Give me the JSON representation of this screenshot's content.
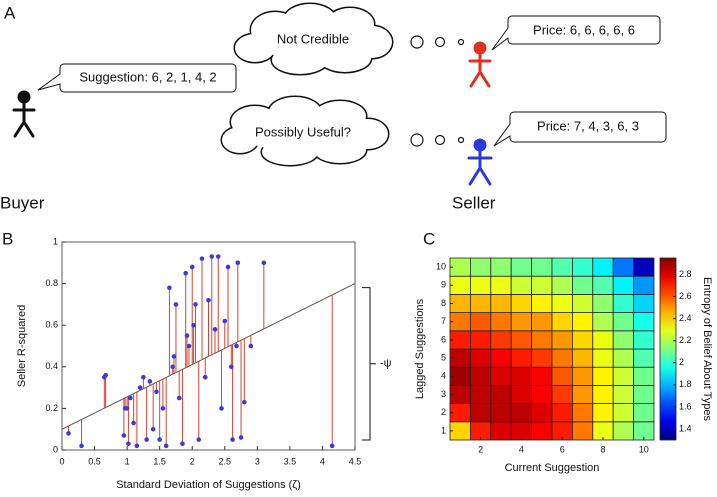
{
  "panel_a": {
    "label": "A",
    "thought_top": "Not Credible",
    "thought_bottom": "Possibly Useful?",
    "buyer_speech": "Suggestion: 6, 2, 1, 4, 2",
    "seller_red_speech": "Price: 6, 6, 6, 6, 6",
    "seller_blue_speech": "Price: 7, 4, 3, 6, 3",
    "buyer": "Buyer",
    "seller": "Seller"
  },
  "chart_data": [
    {
      "type": "scatter",
      "panel_label": "B",
      "xlabel": "Standard Deviation of Suggestions (ζ)",
      "ylabel": "Seller R-squared",
      "annotation": "-ψ",
      "color": "#3b3bdc",
      "stem_color": "#d9412f",
      "fit_color": "#555555",
      "x": [
        0.1,
        0.3,
        0.65,
        0.67,
        0.95,
        0.97,
        1.0,
        1.02,
        1.05,
        1.1,
        1.15,
        1.2,
        1.25,
        1.3,
        1.35,
        1.4,
        1.45,
        1.5,
        1.55,
        1.6,
        1.65,
        1.7,
        1.72,
        1.75,
        1.8,
        1.85,
        1.9,
        1.92,
        1.95,
        2.0,
        2.02,
        2.05,
        2.1,
        2.15,
        2.2,
        2.25,
        2.3,
        2.35,
        2.4,
        2.45,
        2.5,
        2.55,
        2.6,
        2.62,
        2.68,
        2.7,
        2.75,
        2.8,
        2.9,
        3.1,
        4.15
      ],
      "values": [
        0.08,
        0.02,
        0.35,
        0.36,
        0.07,
        0.2,
        0.2,
        0.03,
        0.25,
        0.13,
        0.02,
        0.3,
        0.35,
        0.05,
        0.33,
        0.1,
        0.28,
        0.05,
        0.2,
        0.02,
        0.78,
        0.4,
        0.45,
        0.7,
        0.25,
        0.03,
        0.85,
        0.55,
        0.5,
        0.88,
        0.6,
        0.7,
        0.05,
        0.92,
        0.35,
        0.72,
        0.93,
        0.58,
        0.93,
        0.2,
        0.62,
        0.88,
        0.4,
        0.05,
        0.5,
        0.9,
        0.06,
        0.23,
        0.5,
        0.9,
        0.02
      ],
      "fit": {
        "x": [
          0,
          4.5
        ],
        "y": [
          0.1,
          0.8
        ]
      },
      "xlim": [
        0,
        4.5
      ],
      "xticks": [
        0,
        0.5,
        1,
        1.5,
        2,
        2.5,
        3,
        3.5,
        4,
        4.5
      ],
      "ylim": [
        0,
        1
      ],
      "yticks": [
        0,
        0.2,
        0.4,
        0.6,
        0.8,
        1
      ]
    },
    {
      "type": "heatmap",
      "panel_label": "C",
      "xlabel": "Current Suggestion",
      "ylabel": "Lagged Suggestions",
      "colormap": "jet",
      "x": [
        1,
        2,
        3,
        4,
        5,
        6,
        7,
        8,
        9,
        10
      ],
      "y": [
        1,
        2,
        3,
        4,
        5,
        6,
        7,
        8,
        9,
        10
      ],
      "values": [
        [
          2.4,
          2.7,
          2.8,
          2.8,
          2.75,
          2.7,
          2.55,
          2.3,
          2.2,
          2.1
        ],
        [
          2.7,
          2.85,
          2.85,
          2.85,
          2.8,
          2.7,
          2.55,
          2.35,
          2.25,
          2.1
        ],
        [
          2.85,
          2.85,
          2.85,
          2.8,
          2.75,
          2.65,
          2.5,
          2.35,
          2.25,
          2.1
        ],
        [
          2.9,
          2.85,
          2.8,
          2.8,
          2.75,
          2.6,
          2.5,
          2.35,
          2.25,
          2.1
        ],
        [
          2.85,
          2.8,
          2.75,
          2.7,
          2.65,
          2.55,
          2.45,
          2.3,
          2.2,
          2.05
        ],
        [
          2.7,
          2.7,
          2.65,
          2.6,
          2.55,
          2.5,
          2.4,
          2.3,
          2.15,
          2.0
        ],
        [
          2.55,
          2.6,
          2.55,
          2.5,
          2.5,
          2.4,
          2.35,
          2.2,
          2.1,
          1.95
        ],
        [
          2.45,
          2.45,
          2.45,
          2.4,
          2.35,
          2.3,
          2.25,
          2.15,
          2.0,
          1.85
        ],
        [
          2.3,
          2.3,
          2.3,
          2.25,
          2.25,
          2.2,
          2.1,
          2.05,
          1.9,
          1.75
        ],
        [
          2.2,
          2.15,
          2.15,
          2.1,
          2.1,
          2.05,
          2.0,
          1.9,
          1.7,
          1.4
        ]
      ],
      "xlim": [
        0.5,
        10.5
      ],
      "xticks": [
        2,
        4,
        6,
        8,
        10
      ],
      "ylim": [
        0.5,
        10.5
      ],
      "yticks": [
        1,
        2,
        3,
        4,
        5,
        6,
        7,
        8,
        9,
        10
      ],
      "colorbar": {
        "label": "Entropy of Belief About Types",
        "lim": [
          1.3,
          2.95
        ],
        "ticks": [
          1.4,
          1.6,
          1.8,
          2,
          2.2,
          2.4,
          2.6,
          2.8
        ]
      }
    }
  ]
}
